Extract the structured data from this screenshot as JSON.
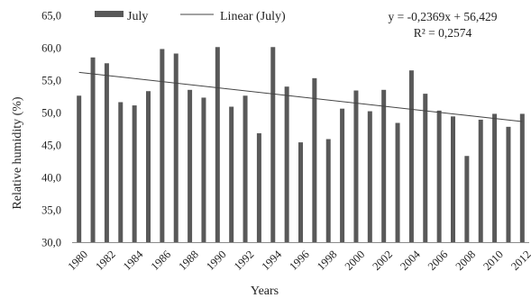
{
  "chart_data": {
    "type": "bar",
    "title": "",
    "xlabel": "Years",
    "ylabel": "Relative humidity (%)",
    "ylim": [
      30,
      65
    ],
    "yticks": [
      "30,0",
      "35,0",
      "40,0",
      "45,0",
      "50,0",
      "55,0",
      "60,0",
      "65,0"
    ],
    "categories": [
      "1980",
      "1981",
      "1982",
      "1983",
      "1984",
      "1985",
      "1986",
      "1987",
      "1988",
      "1989",
      "1990",
      "1991",
      "1992",
      "1993",
      "1994",
      "1995",
      "1996",
      "1997",
      "1998",
      "1999",
      "2000",
      "2001",
      "2002",
      "2003",
      "2004",
      "2005",
      "2006",
      "2007",
      "2008",
      "2009",
      "2010",
      "2011",
      "2012"
    ],
    "xtick_labels": [
      "1980",
      "1982",
      "1984",
      "1986",
      "1988",
      "1990",
      "1992",
      "1994",
      "1996",
      "1998",
      "2000",
      "2002",
      "2004",
      "2006",
      "2008",
      "2010",
      "2012"
    ],
    "series": [
      {
        "name": "July",
        "color": "#595959",
        "values": [
          52.6,
          58.5,
          57.6,
          51.6,
          51.1,
          53.3,
          59.8,
          59.1,
          53.5,
          52.3,
          60.1,
          50.9,
          52.6,
          46.8,
          60.1,
          54.0,
          45.4,
          55.3,
          45.9,
          50.6,
          53.4,
          50.2,
          53.5,
          48.4,
          56.5,
          52.9,
          50.3,
          49.4,
          43.3,
          48.9,
          49.8,
          47.8,
          49.8
        ]
      }
    ],
    "trendline": {
      "name": "Linear (July)",
      "slope": -0.2369,
      "intercept": 56.429,
      "x_start_index": 1,
      "equation_label": "y = -0,2369x + 56,429",
      "r2_label": "R² = 0,2574"
    },
    "grid": false,
    "legend_position": "top"
  }
}
